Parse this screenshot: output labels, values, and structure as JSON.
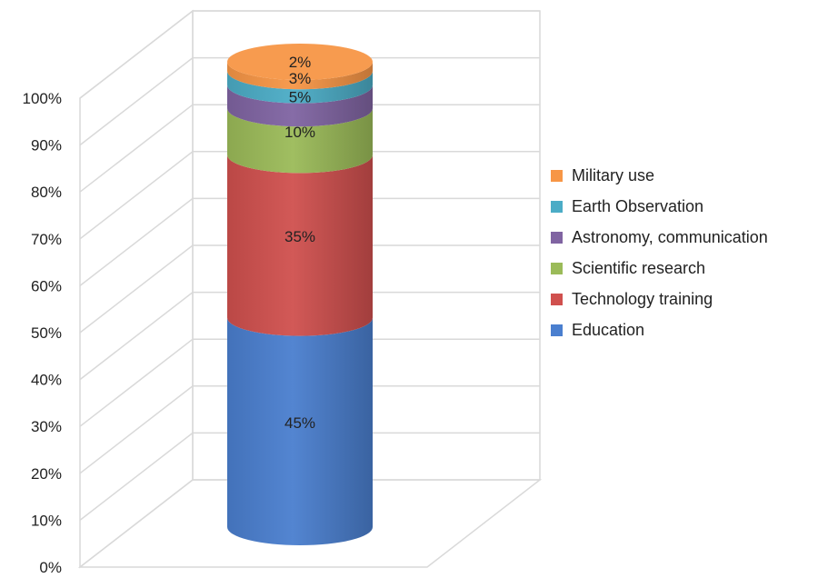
{
  "chart_data": {
    "type": "bar",
    "stacked": true,
    "three_d": "cylinder",
    "categories": [
      ""
    ],
    "series": [
      {
        "name": "Education",
        "values": [
          45
        ],
        "color": "#4a7fcf",
        "label": "45%"
      },
      {
        "name": "Technology training",
        "values": [
          35
        ],
        "color": "#d0504e",
        "label": "35%"
      },
      {
        "name": "Scientific research",
        "values": [
          10
        ],
        "color": "#9bbb59",
        "label": "10%"
      },
      {
        "name": "Astronomy, communication",
        "values": [
          5
        ],
        "color": "#8064a2",
        "label": "5%"
      },
      {
        "name": "Earth Observation",
        "values": [
          3
        ],
        "color": "#4bacc6",
        "label": "3%"
      },
      {
        "name": "Military use",
        "values": [
          2
        ],
        "color": "#f79646",
        "label": "2%"
      }
    ],
    "y_ticks": [
      "0%",
      "10%",
      "20%",
      "30%",
      "40%",
      "50%",
      "60%",
      "70%",
      "80%",
      "90%",
      "100%"
    ],
    "ylim": [
      0,
      100
    ],
    "grid": true,
    "legend_position": "right",
    "legend_order": [
      "Military use",
      "Earth Observation",
      "Astronomy, communication",
      "Scientific research",
      "Technology training",
      "Education"
    ]
  }
}
